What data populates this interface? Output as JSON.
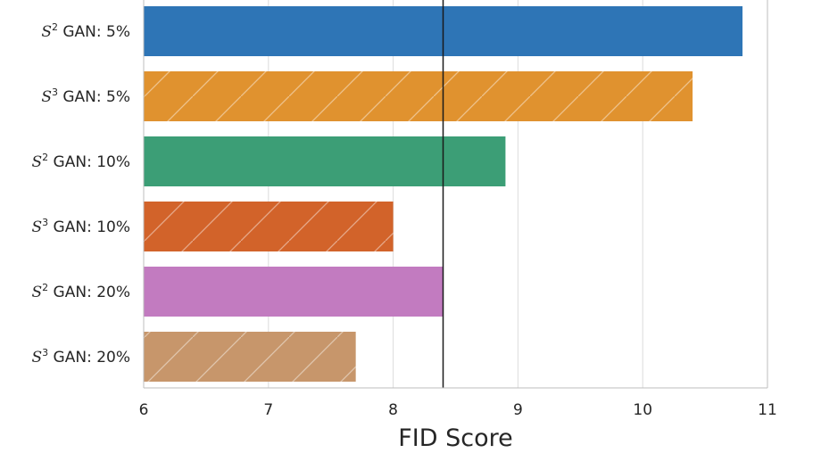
{
  "chart_data": {
    "type": "bar",
    "orientation": "horizontal",
    "categories": [
      {
        "prefix": "S",
        "exponent": "2",
        "label": "GAN: 5%"
      },
      {
        "prefix": "S",
        "exponent": "3",
        "label": "GAN: 5%"
      },
      {
        "prefix": "S",
        "exponent": "2",
        "label": "GAN: 10%"
      },
      {
        "prefix": "S",
        "exponent": "3",
        "label": "GAN: 10%"
      },
      {
        "prefix": "S",
        "exponent": "2",
        "label": "GAN: 20%"
      },
      {
        "prefix": "S",
        "exponent": "3",
        "label": "GAN: 20%"
      }
    ],
    "values": [
      10.8,
      10.4,
      8.9,
      8.0,
      8.4,
      7.7
    ],
    "colors": [
      "#2e75b6",
      "#e0922f",
      "#3c9e76",
      "#d2632a",
      "#c27bc0",
      "#c7966b"
    ],
    "hatched": [
      false,
      true,
      false,
      true,
      false,
      true
    ],
    "reference_line_x": 8.4,
    "xlabel": "FID Score",
    "ylabel": "",
    "xlim": [
      6,
      11
    ],
    "xticks": [
      "6",
      "7",
      "8",
      "9",
      "10",
      "11"
    ],
    "grid": "vertical"
  }
}
